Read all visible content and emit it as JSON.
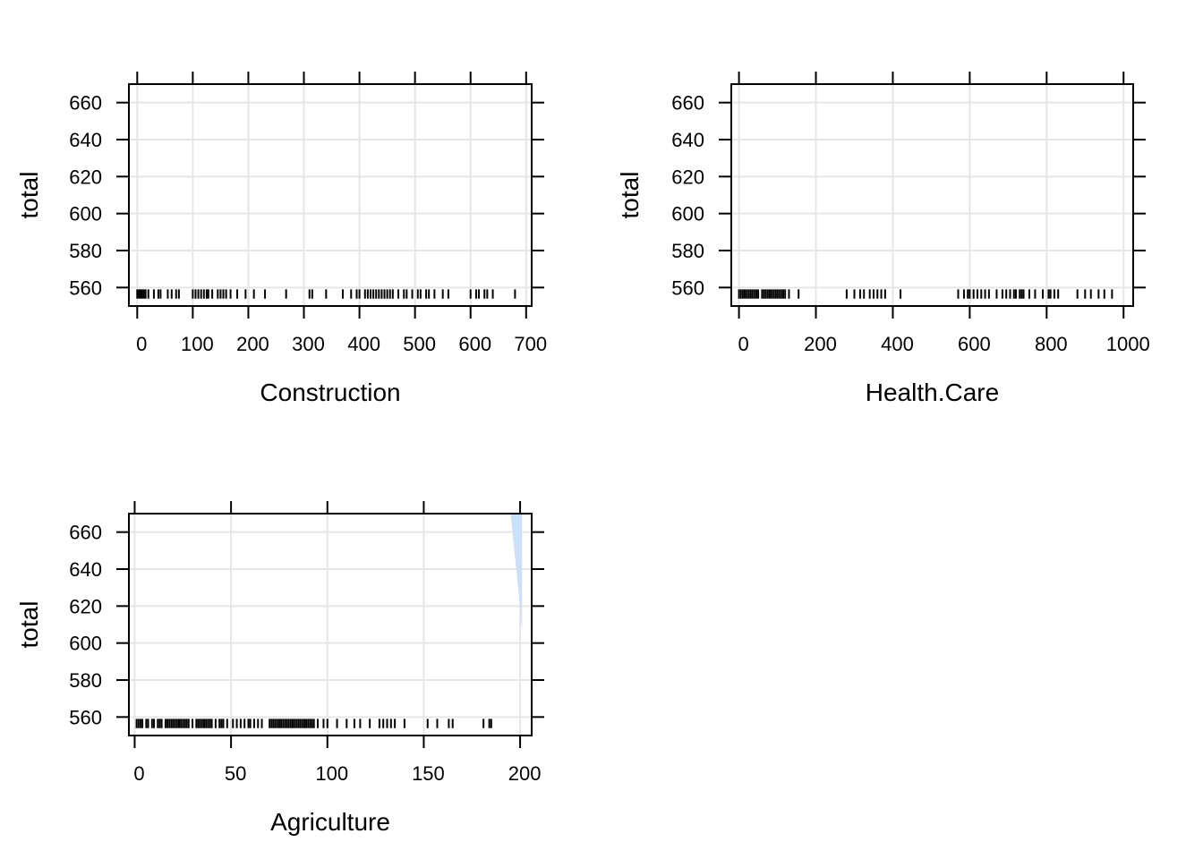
{
  "chart_data": [
    {
      "type": "scatter",
      "title": "",
      "xlabel": "Construction",
      "ylabel": "total",
      "xlim": [
        -15,
        710
      ],
      "ylim": [
        550,
        670
      ],
      "x_ticks": [
        0,
        100,
        200,
        300,
        400,
        500,
        600,
        700
      ],
      "x_tick_labels": [
        "0",
        "100",
        "200",
        "300",
        "400",
        "500",
        "600",
        "700"
      ],
      "y_ticks": [
        560,
        580,
        600,
        620,
        640,
        660
      ],
      "y_tick_labels": [
        "560",
        "580",
        "600",
        "620",
        "640",
        "660"
      ],
      "grid": true,
      "rug": [
        0,
        3,
        6,
        9,
        12,
        15,
        20,
        30,
        38,
        42,
        55,
        62,
        70,
        75,
        100,
        105,
        110,
        115,
        120,
        125,
        128,
        135,
        145,
        150,
        155,
        160,
        168,
        180,
        195,
        210,
        230,
        268,
        310,
        315,
        340,
        370,
        385,
        395,
        400,
        410,
        415,
        420,
        425,
        430,
        435,
        440,
        445,
        450,
        455,
        460,
        470,
        480,
        485,
        495,
        505,
        510,
        520,
        525,
        535,
        550,
        560,
        600,
        610,
        615,
        625,
        630,
        640,
        680
      ],
      "band": null
    },
    {
      "type": "scatter",
      "title": "",
      "xlabel": "Health.Care",
      "ylabel": "total",
      "xlim": [
        -20,
        1025
      ],
      "ylim": [
        550,
        670
      ],
      "x_ticks": [
        0,
        200,
        400,
        600,
        800,
        1000
      ],
      "x_tick_labels": [
        "0",
        "200",
        "400",
        "600",
        "800",
        "1000"
      ],
      "y_ticks": [
        560,
        580,
        600,
        620,
        640,
        660
      ],
      "y_tick_labels": [
        "560",
        "580",
        "600",
        "620",
        "640",
        "660"
      ],
      "grid": true,
      "rug": [
        0,
        5,
        10,
        15,
        20,
        25,
        30,
        35,
        40,
        45,
        50,
        60,
        65,
        70,
        75,
        80,
        85,
        90,
        95,
        100,
        105,
        110,
        115,
        120,
        130,
        155,
        280,
        300,
        315,
        325,
        340,
        350,
        360,
        370,
        380,
        420,
        570,
        585,
        595,
        600,
        610,
        620,
        630,
        640,
        650,
        670,
        685,
        695,
        705,
        715,
        720,
        730,
        735,
        740,
        755,
        770,
        790,
        805,
        810,
        820,
        830,
        880,
        900,
        915,
        935,
        950,
        970
      ],
      "band": null
    },
    {
      "type": "scatter",
      "title": "",
      "xlabel": "Agriculture",
      "ylabel": "total",
      "xlim": [
        -3,
        206
      ],
      "ylim": [
        550,
        670
      ],
      "x_ticks": [
        0,
        50,
        100,
        150,
        200
      ],
      "x_tick_labels": [
        "0",
        "50",
        "100",
        "150",
        "200"
      ],
      "y_ticks": [
        560,
        580,
        600,
        620,
        640,
        660
      ],
      "y_tick_labels": [
        "560",
        "580",
        "600",
        "620",
        "640",
        "660"
      ],
      "grid": true,
      "rug": [
        1,
        2,
        3,
        4,
        6,
        7,
        9,
        10,
        12,
        13,
        14,
        16,
        17,
        18,
        19,
        20,
        21,
        22,
        23,
        24,
        25,
        26,
        27,
        28,
        30,
        32,
        33,
        34,
        35,
        36,
        37,
        38,
        39,
        40,
        42,
        44,
        45,
        46,
        48,
        51,
        53,
        55,
        57,
        59,
        60,
        62,
        64,
        66,
        70,
        71,
        72,
        73,
        74,
        75,
        76,
        77,
        78,
        79,
        80,
        81,
        82,
        83,
        84,
        85,
        86,
        87,
        88,
        89,
        90,
        91,
        92,
        93,
        95,
        98,
        100,
        105,
        110,
        114,
        117,
        122,
        127,
        129,
        131,
        133,
        135,
        140,
        152,
        157,
        163,
        165,
        181,
        184,
        185
      ],
      "band": {
        "x": [
          195,
          200,
          201
        ],
        "lower": [
          670,
          620,
          605
        ],
        "upper": [
          670,
          670,
          670
        ],
        "color": "#cce0fa"
      }
    }
  ],
  "style": {
    "grid_color": "#e6e6e6",
    "axis_color": "#000000",
    "rug_color": "#000000"
  }
}
